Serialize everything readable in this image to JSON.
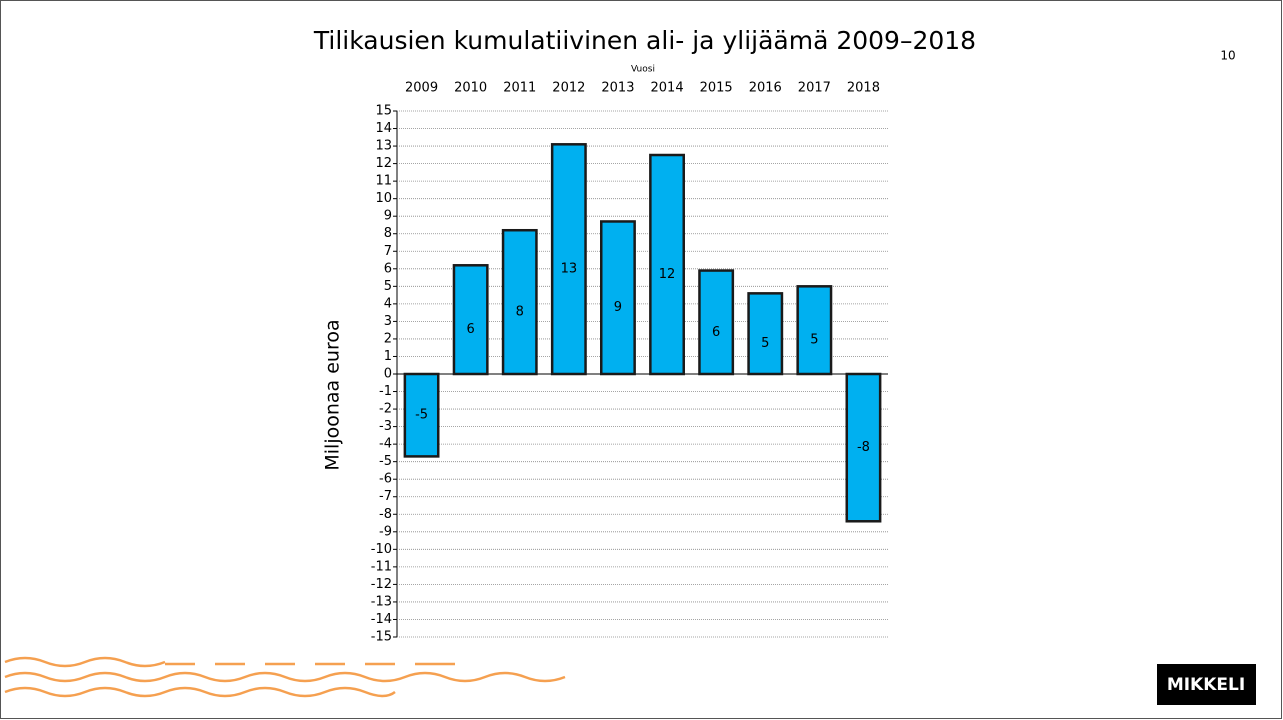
{
  "chart_data": {
    "type": "bar",
    "title": "Tilikausien kumulatiivinen ali- ja ylijäämä 2009–2018",
    "x_label": "Vuosi",
    "y_label": "Miljoonaa euroa",
    "categories": [
      "2009",
      "2010",
      "2011",
      "2012",
      "2013",
      "2014",
      "2015",
      "2016",
      "2017",
      "2018"
    ],
    "values": [
      -4.7,
      6.2,
      8.2,
      13.1,
      8.7,
      12.49,
      5.9,
      4.6,
      5.0,
      -8.4
    ],
    "value_labels": [
      "-5",
      "6",
      "8",
      "13",
      "9",
      "12",
      "6",
      "5",
      "5",
      "-8"
    ],
    "color": "#00b0f0",
    "ylim": [
      -15,
      15
    ],
    "yticks": [
      -15,
      -14,
      -13,
      -12,
      -11,
      -10,
      -9,
      -8,
      -7,
      -6,
      -5,
      -4,
      -3,
      -2,
      -1,
      0,
      1,
      2,
      3,
      4,
      5,
      6,
      7,
      8,
      9,
      10,
      11,
      12,
      13,
      14,
      15
    ],
    "grid": true
  },
  "slide": {
    "page_number": "10",
    "logo": "MIKKELI"
  }
}
